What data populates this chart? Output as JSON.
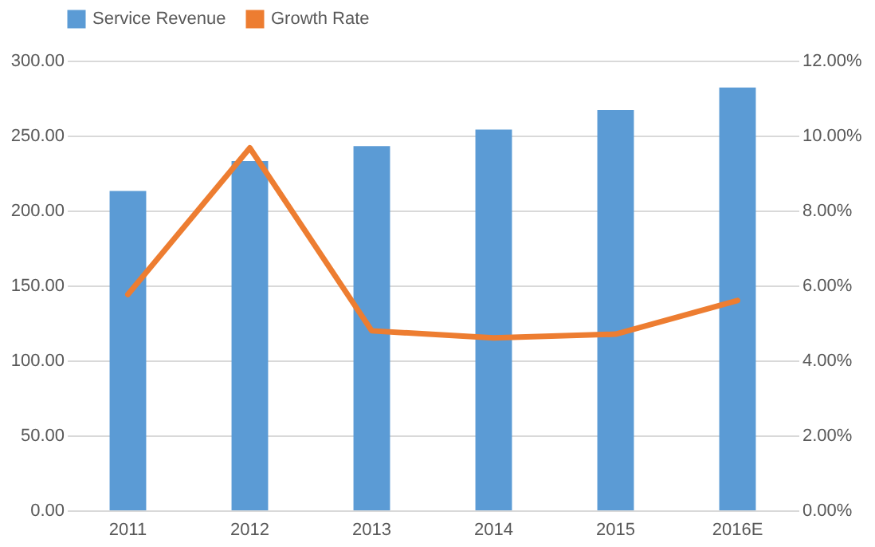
{
  "chart_data": {
    "type": "bar",
    "categories": [
      "2011",
      "2012",
      "2013",
      "2014",
      "2015",
      "2016E"
    ],
    "series": [
      {
        "name": "Service Revenue",
        "color": "#5b9bd5",
        "values": [
          213,
          233,
          243,
          254,
          267,
          282
        ]
      },
      {
        "name": "Growth Rate",
        "type": "line",
        "axis": "y2",
        "color": "#ed7d31",
        "values": [
          5.76,
          9.67,
          4.79,
          4.6,
          4.7,
          5.6
        ]
      }
    ],
    "ylim": [
      0,
      300
    ],
    "yticks": [
      {
        "value": 0,
        "label": "0.00"
      },
      {
        "value": 50,
        "label": "50.00"
      },
      {
        "value": 100,
        "label": "100.00"
      },
      {
        "value": 150,
        "label": "150.00"
      },
      {
        "value": 200,
        "label": "200.00"
      },
      {
        "value": 250,
        "label": "250.00"
      },
      {
        "value": 300,
        "label": "300.00"
      }
    ],
    "y2lim": [
      0,
      12
    ],
    "y2ticks": [
      {
        "value": 0,
        "label": "0.00%"
      },
      {
        "value": 2,
        "label": "2.00%"
      },
      {
        "value": 4,
        "label": "4.00%"
      },
      {
        "value": 6,
        "label": "6.00%"
      },
      {
        "value": 8,
        "label": "8.00%"
      },
      {
        "value": 10,
        "label": "10.00%"
      },
      {
        "value": 12,
        "label": "12.00%"
      }
    ],
    "grid": "y",
    "legend": "top",
    "marker": "none",
    "line_style": "solid"
  }
}
